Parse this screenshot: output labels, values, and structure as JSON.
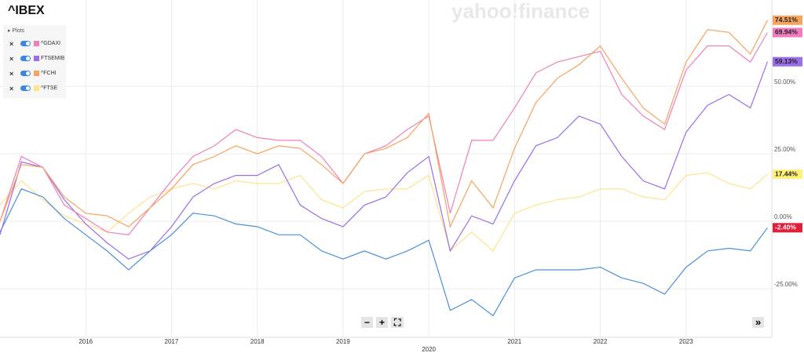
{
  "chart_data": {
    "type": "line",
    "title": "^IBEX",
    "watermark": "yahoo!finance",
    "legend_title": "Plots",
    "legend_position": "upper left",
    "toolbar": [
      "−",
      "+",
      "⛶",
      "»"
    ],
    "grid": true,
    "xlim": [
      2015,
      2024
    ],
    "xticks": [
      2016,
      2017,
      2018,
      2019,
      2020,
      2021,
      2022,
      2023
    ],
    "ylim": [
      -43,
      82
    ],
    "yticks": [
      {
        "value": 50,
        "label": "50.00%"
      },
      {
        "value": 25,
        "label": "25.00%"
      },
      {
        "value": 0,
        "label": "0.00%"
      },
      {
        "value": -25,
        "label": "-25.00%"
      }
    ],
    "x": [
      2015,
      2015.25,
      2015.5,
      2015.75,
      2016,
      2016.25,
      2016.5,
      2016.75,
      2017,
      2017.25,
      2017.5,
      2017.75,
      2018,
      2018.25,
      2018.5,
      2018.75,
      2019,
      2019.25,
      2019.5,
      2019.75,
      2020,
      2020.25,
      2020.5,
      2020.75,
      2021,
      2021.25,
      2021.5,
      2021.75,
      2022,
      2022.25,
      2022.5,
      2022.75,
      2023,
      2023.25,
      2023.5,
      2023.75,
      2023.95
    ],
    "series": [
      {
        "color": "#4a8fdc",
        "label_color": "#e0203a",
        "values": [
          -4,
          12,
          9,
          1,
          -5,
          -11,
          -18,
          -11,
          -5,
          3,
          2,
          -1,
          -2,
          -5,
          -5,
          -11,
          -14,
          -11,
          -14,
          -11,
          -7,
          -33,
          -29,
          -35,
          -21,
          -18,
          -18,
          -18,
          -17,
          -21,
          -23,
          -27,
          -17,
          -11,
          -10,
          -11,
          -2.4
        ],
        "value_labels": [
          null,
          null,
          null,
          null,
          null,
          null,
          null,
          null,
          null,
          null,
          null,
          null,
          null,
          null,
          null,
          null,
          null,
          null,
          null,
          null,
          null,
          null,
          null,
          null,
          null,
          null,
          null,
          null,
          null,
          null,
          null,
          null,
          null,
          null,
          null,
          null,
          "-2.40%"
        ]
      },
      {
        "name": "^GDAXI",
        "color": "#f07fb6",
        "label_color": "#f37bbf",
        "values": [
          0,
          24,
          20,
          6,
          1,
          -4,
          -5,
          5,
          15,
          24,
          28,
          34,
          31,
          30,
          30,
          24,
          14,
          25,
          28,
          34,
          39,
          3,
          30,
          30,
          42,
          55,
          59,
          61,
          63,
          47,
          39,
          34,
          56,
          65,
          65,
          59,
          69.94
        ],
        "value_labels": [
          null,
          null,
          null,
          null,
          null,
          null,
          null,
          null,
          null,
          null,
          null,
          null,
          null,
          null,
          null,
          null,
          null,
          null,
          null,
          null,
          null,
          null,
          null,
          null,
          null,
          null,
          null,
          null,
          null,
          null,
          null,
          null,
          null,
          null,
          null,
          null,
          "69.94%"
        ]
      },
      {
        "name": "FTSEMIB",
        "color": "#9b6de8",
        "label_color": "#9b6de8",
        "values": [
          -5,
          22,
          20,
          8,
          -1,
          -8,
          -14,
          -11,
          -2,
          9,
          14,
          17,
          17,
          21,
          6,
          1,
          -2,
          6,
          9,
          18,
          24,
          -11,
          2,
          -1,
          15,
          28,
          31,
          39,
          36,
          24,
          15,
          12,
          33,
          43,
          47,
          42,
          59.13
        ],
        "value_labels": [
          null,
          null,
          null,
          null,
          null,
          null,
          null,
          null,
          null,
          null,
          null,
          null,
          null,
          null,
          null,
          null,
          null,
          null,
          null,
          null,
          null,
          null,
          null,
          null,
          null,
          null,
          null,
          null,
          null,
          null,
          null,
          null,
          null,
          null,
          null,
          null,
          "59.13%"
        ]
      },
      {
        "name": "^FCHI",
        "color": "#f6a35f",
        "label_color": "#f6a35f",
        "values": [
          0,
          21,
          20,
          9,
          3,
          2,
          -2,
          5,
          12,
          21,
          24,
          28,
          25,
          28,
          27,
          21,
          14,
          25,
          27,
          31,
          40,
          -2,
          15,
          5,
          27,
          44,
          53,
          58,
          65,
          53,
          42,
          36,
          59,
          71,
          70,
          62,
          74.51
        ],
        "value_labels": [
          null,
          null,
          null,
          null,
          null,
          null,
          null,
          null,
          null,
          null,
          null,
          null,
          null,
          null,
          null,
          null,
          null,
          null,
          null,
          null,
          null,
          null,
          null,
          null,
          null,
          null,
          null,
          null,
          null,
          null,
          null,
          null,
          null,
          null,
          null,
          null,
          "74.51%"
        ]
      },
      {
        "name": "^FTSE",
        "color": "#fde38a",
        "label_color": "#fff178",
        "values": [
          6,
          15,
          8,
          2,
          -1,
          -4,
          3,
          9,
          12,
          14,
          12,
          15,
          14,
          14,
          17,
          8,
          5,
          11,
          12,
          12,
          17,
          -11,
          -4,
          -11,
          3,
          6,
          8,
          9,
          12,
          12,
          9,
          8,
          17,
          18,
          14,
          12,
          17.44
        ],
        "value_labels": [
          null,
          null,
          null,
          null,
          null,
          null,
          null,
          null,
          null,
          null,
          null,
          null,
          null,
          null,
          null,
          null,
          null,
          null,
          null,
          null,
          null,
          null,
          null,
          null,
          null,
          null,
          null,
          null,
          null,
          null,
          null,
          null,
          null,
          null,
          null,
          null,
          "17.44%"
        ]
      }
    ]
  }
}
